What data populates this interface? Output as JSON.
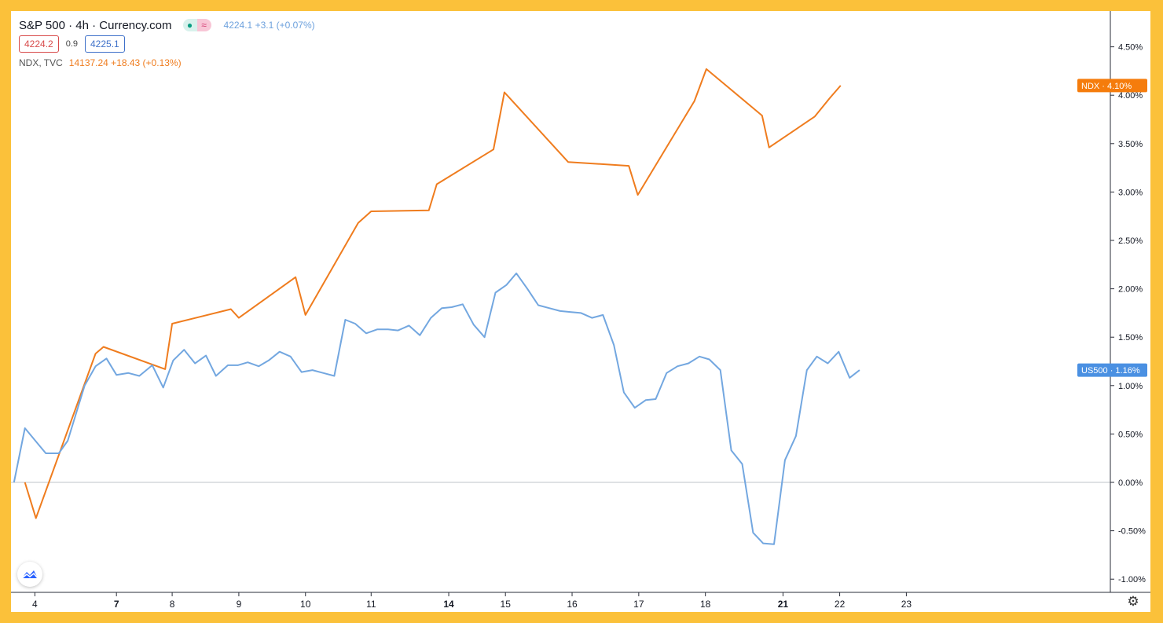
{
  "legend": {
    "symbol_title": "S&P 500 · 4h · Currency.com",
    "badge_green": "●",
    "badge_pink": "≈",
    "price_change": "4224.1 +3.1 (+0.07%)",
    "bid": "4224.2",
    "spread": "0.9",
    "ask": "4225.1",
    "ndx_name": "NDX, TVC",
    "ndx_value": "14137.24 +18.43 (+0.13%)"
  },
  "colors": {
    "us500": "#73a7e0",
    "ndx": "#ef7c1e",
    "axis_text": "#131722",
    "zero_line": "#bfc3c9",
    "us500_tag": "#4a90e2",
    "ndx_tag": "#f57c0c"
  },
  "icons": {
    "logo": "tradingview-logo-icon",
    "settings": "gear-icon"
  },
  "chart_data": {
    "type": "line",
    "title": "S&P 500 · 4h · Currency.com",
    "y_axis": {
      "ticks": [
        4.5,
        4.0,
        3.5,
        3.0,
        2.5,
        2.0,
        1.5,
        1.0,
        0.5,
        0.0,
        -0.5,
        -1.0
      ],
      "tick_labels": [
        "4.50%",
        "4.00%",
        "3.50%",
        "3.00%",
        "2.50%",
        "2.00%",
        "1.50%",
        "1.00%",
        "0.50%",
        "0.00%",
        "-0.50%",
        "-1.00%"
      ],
      "range": [
        -1.1,
        4.8
      ]
    },
    "x_axis": {
      "range": [
        0,
        100
      ],
      "ticks": [
        {
          "x": 2.4,
          "label": "4",
          "bold": false
        },
        {
          "x": 10.6,
          "label": "7",
          "bold": true
        },
        {
          "x": 16.2,
          "label": "8",
          "bold": false
        },
        {
          "x": 22.9,
          "label": "9",
          "bold": false
        },
        {
          "x": 29.6,
          "label": "10",
          "bold": false
        },
        {
          "x": 36.2,
          "label": "11",
          "bold": false
        },
        {
          "x": 44.0,
          "label": "14",
          "bold": true
        },
        {
          "x": 49.7,
          "label": "15",
          "bold": false
        },
        {
          "x": 56.4,
          "label": "16",
          "bold": false
        },
        {
          "x": 63.1,
          "label": "17",
          "bold": false
        },
        {
          "x": 69.8,
          "label": "18",
          "bold": false
        },
        {
          "x": 77.6,
          "label": "21",
          "bold": true
        },
        {
          "x": 83.3,
          "label": "22",
          "bold": false
        },
        {
          "x": 90.0,
          "label": "23",
          "bold": false
        }
      ]
    },
    "series": [
      {
        "name": "NDX",
        "last_label": "4.10%",
        "points": [
          [
            1.4,
            0.0
          ],
          [
            2.5,
            -0.37
          ],
          [
            8.5,
            1.33
          ],
          [
            9.3,
            1.4
          ],
          [
            15.5,
            1.17
          ],
          [
            16.2,
            1.64
          ],
          [
            22.1,
            1.79
          ],
          [
            22.9,
            1.7
          ],
          [
            28.6,
            2.12
          ],
          [
            29.6,
            1.73
          ],
          [
            34.9,
            2.68
          ],
          [
            36.2,
            2.8
          ],
          [
            42.0,
            2.81
          ],
          [
            42.8,
            3.08
          ],
          [
            48.5,
            3.44
          ],
          [
            49.6,
            4.03
          ],
          [
            56.0,
            3.31
          ],
          [
            62.1,
            3.27
          ],
          [
            63.0,
            2.97
          ],
          [
            68.7,
            3.94
          ],
          [
            69.9,
            4.27
          ],
          [
            75.5,
            3.79
          ],
          [
            76.2,
            3.46
          ],
          [
            80.8,
            3.78
          ],
          [
            82.3,
            3.97
          ],
          [
            83.4,
            4.1
          ]
        ]
      },
      {
        "name": "US500",
        "last_label": "1.16%",
        "points": [
          [
            0.3,
            0.0
          ],
          [
            1.4,
            0.56
          ],
          [
            3.5,
            0.3
          ],
          [
            4.8,
            0.3
          ],
          [
            5.7,
            0.43
          ],
          [
            7.4,
            1.0
          ],
          [
            8.5,
            1.2
          ],
          [
            9.6,
            1.28
          ],
          [
            10.6,
            1.11
          ],
          [
            11.8,
            1.13
          ],
          [
            12.9,
            1.1
          ],
          [
            14.2,
            1.21
          ],
          [
            15.3,
            0.98
          ],
          [
            16.3,
            1.26
          ],
          [
            17.4,
            1.37
          ],
          [
            18.5,
            1.23
          ],
          [
            19.6,
            1.31
          ],
          [
            20.6,
            1.1
          ],
          [
            21.8,
            1.21
          ],
          [
            22.8,
            1.21
          ],
          [
            23.8,
            1.24
          ],
          [
            24.9,
            1.2
          ],
          [
            25.9,
            1.26
          ],
          [
            27.0,
            1.35
          ],
          [
            28.1,
            1.3
          ],
          [
            29.2,
            1.14
          ],
          [
            30.3,
            1.16
          ],
          [
            31.4,
            1.13
          ],
          [
            32.5,
            1.1
          ],
          [
            33.6,
            1.68
          ],
          [
            34.6,
            1.64
          ],
          [
            35.7,
            1.54
          ],
          [
            36.8,
            1.58
          ],
          [
            37.9,
            1.58
          ],
          [
            38.9,
            1.57
          ],
          [
            40.0,
            1.62
          ],
          [
            41.1,
            1.52
          ],
          [
            42.2,
            1.7
          ],
          [
            43.3,
            1.8
          ],
          [
            44.3,
            1.81
          ],
          [
            45.4,
            1.84
          ],
          [
            46.5,
            1.63
          ],
          [
            47.6,
            1.5
          ],
          [
            48.7,
            1.96
          ],
          [
            49.8,
            2.04
          ],
          [
            50.8,
            2.16
          ],
          [
            51.9,
            2.0
          ],
          [
            53.0,
            1.83
          ],
          [
            54.1,
            1.8
          ],
          [
            55.2,
            1.77
          ],
          [
            56.3,
            1.76
          ],
          [
            57.3,
            1.75
          ],
          [
            58.4,
            1.7
          ],
          [
            59.5,
            1.73
          ],
          [
            60.6,
            1.42
          ],
          [
            61.6,
            0.93
          ],
          [
            62.7,
            0.77
          ],
          [
            63.8,
            0.85
          ],
          [
            64.8,
            0.86
          ],
          [
            65.9,
            1.13
          ],
          [
            67.0,
            1.2
          ],
          [
            68.1,
            1.23
          ],
          [
            69.2,
            1.3
          ],
          [
            70.2,
            1.27
          ],
          [
            71.3,
            1.16
          ],
          [
            72.4,
            0.33
          ],
          [
            73.5,
            0.19
          ],
          [
            74.6,
            -0.52
          ],
          [
            75.6,
            -0.63
          ],
          [
            76.7,
            -0.64
          ],
          [
            77.8,
            0.23
          ],
          [
            78.9,
            0.48
          ],
          [
            80.0,
            1.16
          ],
          [
            81.0,
            1.3
          ],
          [
            82.1,
            1.23
          ],
          [
            83.2,
            1.35
          ],
          [
            84.3,
            1.08
          ],
          [
            85.3,
            1.16
          ]
        ]
      }
    ]
  }
}
